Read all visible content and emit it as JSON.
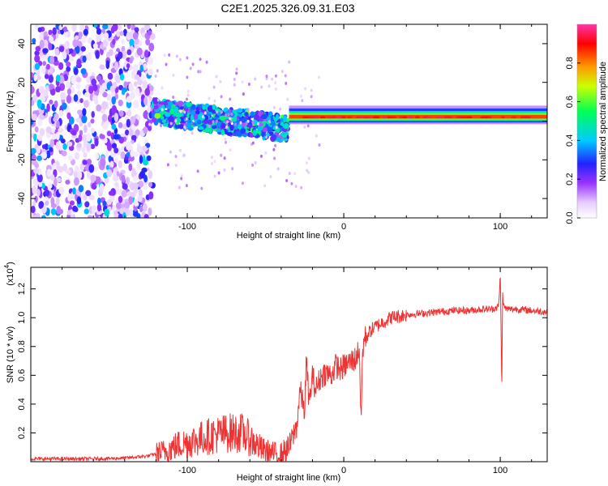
{
  "title": "C2E1.2025.326.09.31.E03",
  "chart_data": [
    {
      "type": "heatmap",
      "xlabel": "Height of straight line (km)",
      "ylabel": "Frequency (Hz)",
      "xlim": [
        -200,
        130
      ],
      "ylim": [
        -50,
        50
      ],
      "xticks": [
        -100,
        0,
        100
      ],
      "yticks": [
        -40,
        -20,
        0,
        20,
        40
      ],
      "colorbar": {
        "label": "Normalized spectral amplitude",
        "range": [
          0,
          1
        ],
        "ticks": [
          0.0,
          0.2,
          0.4,
          0.6,
          0.8
        ]
      },
      "features": [
        {
          "name": "noise-region",
          "x_range": [
            -200,
            -122
          ],
          "freq_range": [
            -50,
            50
          ],
          "amplitude": 0.15
        },
        {
          "name": "transition-band",
          "x_range": [
            -122,
            -35
          ],
          "freq_center": 5,
          "freq_width": 10,
          "amplitude": 0.4
        },
        {
          "name": "signal-band",
          "x_range": [
            -35,
            130
          ],
          "freq_center": 2,
          "freq_width": 6,
          "amplitude": 0.9
        }
      ]
    },
    {
      "type": "line",
      "xlabel": "Height of straight line (km)",
      "ylabel": "SNR (10 * v/v)",
      "yscale_label": "(x10",
      "yscale_exp": "4",
      "xlim": [
        -200,
        130
      ],
      "ylim": [
        0,
        1.35
      ],
      "xticks": [
        -100,
        0,
        100
      ],
      "yticks": [
        0.2,
        0.4,
        0.6,
        0.8,
        1.0,
        1.2
      ],
      "color": "#ee3333",
      "series": [
        {
          "name": "SNR",
          "x": [
            -200,
            -160,
            -140,
            -125,
            -115,
            -105,
            -95,
            -85,
            -75,
            -65,
            -58,
            -52,
            -46,
            -40,
            -35,
            -30,
            -28,
            -25,
            -24,
            -22,
            -20,
            -18,
            -15,
            -12,
            -8,
            -5,
            -2,
            0,
            2,
            5,
            8,
            10,
            11,
            12,
            13,
            15,
            18,
            22,
            30,
            40,
            50,
            60,
            70,
            80,
            90,
            95,
            99,
            100,
            101,
            101.5,
            102,
            104,
            110,
            120,
            130
          ],
          "y": [
            0.02,
            0.02,
            0.025,
            0.04,
            0.07,
            0.12,
            0.15,
            0.18,
            0.2,
            0.2,
            0.14,
            0.08,
            0.06,
            0.05,
            0.1,
            0.25,
            0.5,
            0.35,
            0.7,
            0.4,
            0.6,
            0.5,
            0.58,
            0.62,
            0.6,
            0.67,
            0.64,
            0.66,
            0.68,
            0.7,
            0.72,
            0.8,
            0.25,
            0.75,
            0.85,
            0.88,
            0.92,
            0.95,
            1.0,
            1.02,
            1.03,
            1.04,
            1.05,
            1.05,
            1.06,
            1.06,
            1.08,
            1.3,
            0.48,
            1.2,
            1.08,
            1.06,
            1.06,
            1.05,
            1.04
          ]
        }
      ]
    }
  ]
}
